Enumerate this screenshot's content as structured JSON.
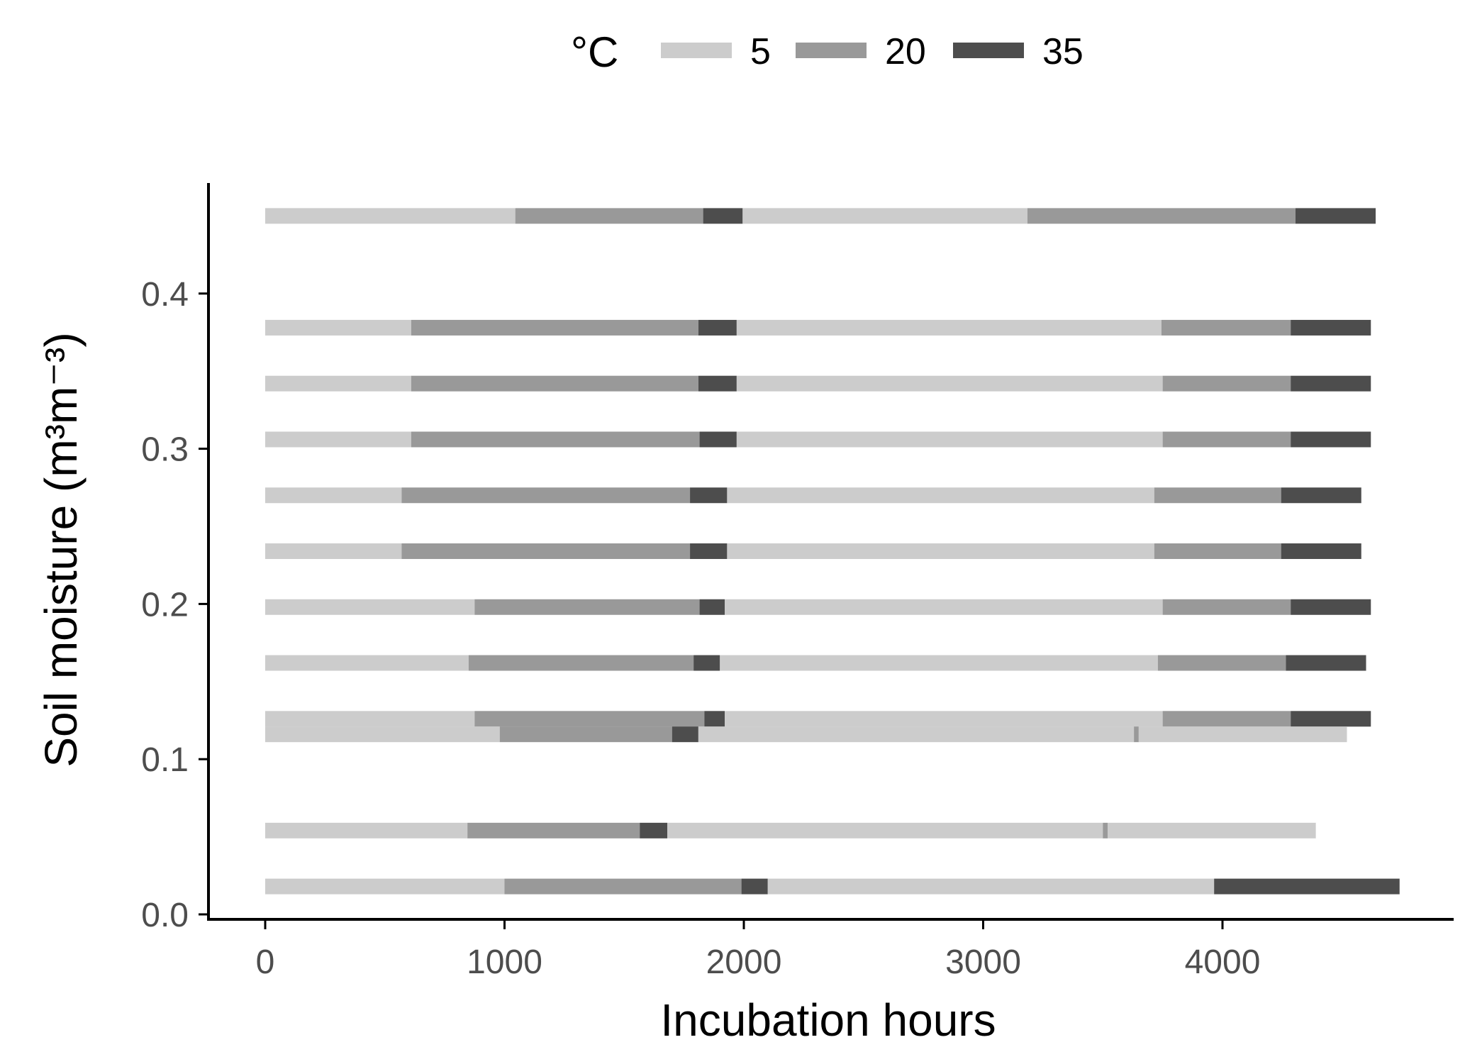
{
  "chart_data": {
    "type": "bar",
    "orientation": "horizontal-segments",
    "xlabel": "Incubation hours",
    "ylabel": "Soil moisture (m³m⁻³)",
    "xlim": [
      -240,
      4920
    ],
    "ylim": [
      -0.005,
      0.473
    ],
    "x_ticks": [
      0,
      1000,
      2000,
      3000,
      4000
    ],
    "x_tick_labels": [
      "0",
      "1000",
      "2000",
      "3000",
      "4000"
    ],
    "y_ticks": [
      0.0,
      0.1,
      0.2,
      0.3,
      0.4
    ],
    "y_tick_labels": [
      "0.0",
      "0.1",
      "0.2",
      "0.3",
      "0.4"
    ],
    "grid": false,
    "legend": {
      "position": "top",
      "title": "°C",
      "entries": [
        {
          "label": "5",
          "color": "#cccccc"
        },
        {
          "label": "20",
          "color": "#999999"
        },
        {
          "label": "35",
          "color": "#4d4d4d"
        }
      ]
    },
    "temperature_colors": {
      "5": "#cccccc",
      "20": "#999999",
      "35": "#4d4d4d"
    },
    "rows": [
      {
        "moisture": 0.45,
        "segments": [
          {
            "temp": "5",
            "start": 0,
            "end": 1045
          },
          {
            "temp": "20",
            "start": 1045,
            "end": 1830
          },
          {
            "temp": "35",
            "start": 1830,
            "end": 1995
          },
          {
            "temp": "5",
            "start": 1995,
            "end": 3185
          },
          {
            "temp": "20",
            "start": 3185,
            "end": 4305
          },
          {
            "temp": "35",
            "start": 4305,
            "end": 4640
          }
        ]
      },
      {
        "moisture": 0.378,
        "segments": [
          {
            "temp": "5",
            "start": 0,
            "end": 610
          },
          {
            "temp": "20",
            "start": 610,
            "end": 1810
          },
          {
            "temp": "35",
            "start": 1810,
            "end": 1970
          },
          {
            "temp": "5",
            "start": 1970,
            "end": 3745
          },
          {
            "temp": "20",
            "start": 3745,
            "end": 4285
          },
          {
            "temp": "35",
            "start": 4285,
            "end": 4620
          }
        ]
      },
      {
        "moisture": 0.342,
        "segments": [
          {
            "temp": "5",
            "start": 0,
            "end": 610
          },
          {
            "temp": "20",
            "start": 610,
            "end": 1810
          },
          {
            "temp": "35",
            "start": 1810,
            "end": 1970
          },
          {
            "temp": "5",
            "start": 1970,
            "end": 3750
          },
          {
            "temp": "20",
            "start": 3750,
            "end": 4285
          },
          {
            "temp": "35",
            "start": 4285,
            "end": 4620
          }
        ]
      },
      {
        "moisture": 0.306,
        "segments": [
          {
            "temp": "5",
            "start": 0,
            "end": 610
          },
          {
            "temp": "20",
            "start": 610,
            "end": 1815
          },
          {
            "temp": "35",
            "start": 1815,
            "end": 1970
          },
          {
            "temp": "5",
            "start": 1970,
            "end": 3750
          },
          {
            "temp": "20",
            "start": 3750,
            "end": 4285
          },
          {
            "temp": "35",
            "start": 4285,
            "end": 4620
          }
        ]
      },
      {
        "moisture": 0.27,
        "segments": [
          {
            "temp": "5",
            "start": 0,
            "end": 570
          },
          {
            "temp": "20",
            "start": 570,
            "end": 1775
          },
          {
            "temp": "35",
            "start": 1775,
            "end": 1930
          },
          {
            "temp": "5",
            "start": 1930,
            "end": 3715
          },
          {
            "temp": "20",
            "start": 3715,
            "end": 4245
          },
          {
            "temp": "35",
            "start": 4245,
            "end": 4580
          }
        ]
      },
      {
        "moisture": 0.234,
        "segments": [
          {
            "temp": "5",
            "start": 0,
            "end": 570
          },
          {
            "temp": "20",
            "start": 570,
            "end": 1775
          },
          {
            "temp": "35",
            "start": 1775,
            "end": 1930
          },
          {
            "temp": "5",
            "start": 1930,
            "end": 3715
          },
          {
            "temp": "20",
            "start": 3715,
            "end": 4245
          },
          {
            "temp": "35",
            "start": 4245,
            "end": 4580
          }
        ]
      },
      {
        "moisture": 0.198,
        "segments": [
          {
            "temp": "5",
            "start": 0,
            "end": 875
          },
          {
            "temp": "20",
            "start": 875,
            "end": 1815
          },
          {
            "temp": "35",
            "start": 1815,
            "end": 1920
          },
          {
            "temp": "5",
            "start": 1920,
            "end": 3750
          },
          {
            "temp": "20",
            "start": 3750,
            "end": 4285
          },
          {
            "temp": "35",
            "start": 4285,
            "end": 4620
          }
        ]
      },
      {
        "moisture": 0.162,
        "segments": [
          {
            "temp": "5",
            "start": 0,
            "end": 850
          },
          {
            "temp": "20",
            "start": 850,
            "end": 1790
          },
          {
            "temp": "35",
            "start": 1790,
            "end": 1900
          },
          {
            "temp": "5",
            "start": 1900,
            "end": 3730
          },
          {
            "temp": "20",
            "start": 3730,
            "end": 4265
          },
          {
            "temp": "35",
            "start": 4265,
            "end": 4600
          }
        ]
      },
      {
        "moisture": 0.126,
        "segments": [
          {
            "temp": "5",
            "start": 0,
            "end": 875
          },
          {
            "temp": "20",
            "start": 875,
            "end": 1835
          },
          {
            "temp": "35",
            "start": 1835,
            "end": 1920
          },
          {
            "temp": "5",
            "start": 1920,
            "end": 3750
          },
          {
            "temp": "20",
            "start": 3750,
            "end": 4285
          },
          {
            "temp": "35",
            "start": 4285,
            "end": 4620
          }
        ]
      },
      {
        "moisture": 0.116,
        "segments": [
          {
            "temp": "5",
            "start": 0,
            "end": 980
          },
          {
            "temp": "20",
            "start": 980,
            "end": 1700
          },
          {
            "temp": "35",
            "start": 1700,
            "end": 1810
          },
          {
            "temp": "5",
            "start": 1810,
            "end": 3630
          },
          {
            "temp": "20",
            "start": 3630,
            "end": 3650
          },
          {
            "temp": "5",
            "start": 3650,
            "end": 4520
          }
        ]
      },
      {
        "moisture": 0.054,
        "segments": [
          {
            "temp": "5",
            "start": 0,
            "end": 845
          },
          {
            "temp": "20",
            "start": 845,
            "end": 1565
          },
          {
            "temp": "35",
            "start": 1565,
            "end": 1680
          },
          {
            "temp": "5",
            "start": 1680,
            "end": 3500
          },
          {
            "temp": "20",
            "start": 3500,
            "end": 3520
          },
          {
            "temp": "5",
            "start": 3520,
            "end": 4390
          }
        ]
      },
      {
        "moisture": 0.018,
        "segments": [
          {
            "temp": "5",
            "start": 0,
            "end": 1000
          },
          {
            "temp": "20",
            "start": 1000,
            "end": 1990
          },
          {
            "temp": "35",
            "start": 1990,
            "end": 2100
          },
          {
            "temp": "5",
            "start": 2100,
            "end": 3965
          },
          {
            "temp": "35",
            "start": 3965,
            "end": 4740
          }
        ]
      }
    ]
  }
}
